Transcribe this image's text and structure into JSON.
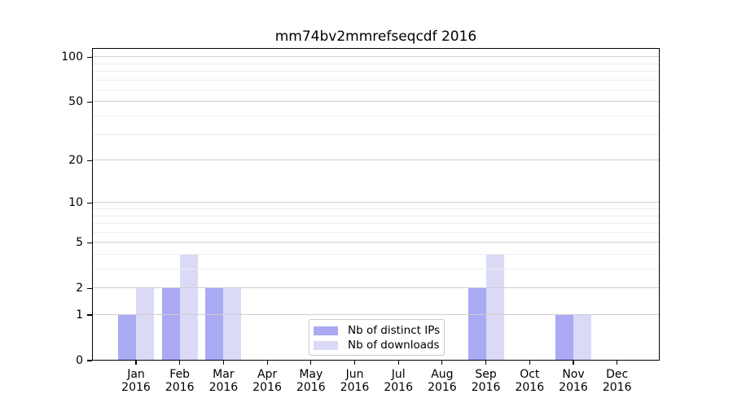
{
  "chart_data": {
    "type": "bar",
    "title": "mm74bv2mmrefseqcdf 2016",
    "categories": [
      "Jan",
      "Feb",
      "Mar",
      "Apr",
      "May",
      "Jun",
      "Jul",
      "Aug",
      "Sep",
      "Oct",
      "Nov",
      "Dec"
    ],
    "year_label": "2016",
    "series": [
      {
        "name": "Nb of distinct IPs",
        "color": "#a9a9f4",
        "values": [
          1,
          2,
          2,
          0,
          0,
          0,
          0,
          0,
          2,
          0,
          1,
          0
        ]
      },
      {
        "name": "Nb of downloads",
        "color": "#dadaf7",
        "values": [
          2,
          4,
          2,
          0,
          0,
          0,
          0,
          0,
          4,
          0,
          1,
          0
        ]
      }
    ],
    "yscale": "log10(value+1)",
    "ylim": [
      0,
      115
    ],
    "y_major_ticks": [
      100,
      50,
      20,
      10,
      5,
      2,
      1,
      0
    ],
    "y_minor_ticks": [
      3,
      4,
      6,
      7,
      8,
      9,
      30,
      40,
      60,
      70,
      80,
      90
    ],
    "grid": true,
    "legend_position": "lower-center-inside",
    "colors": {
      "major_grid": "#cfcfcf",
      "minor_grid": "#ededed",
      "axis": "#000000",
      "background": "#ffffff"
    }
  }
}
